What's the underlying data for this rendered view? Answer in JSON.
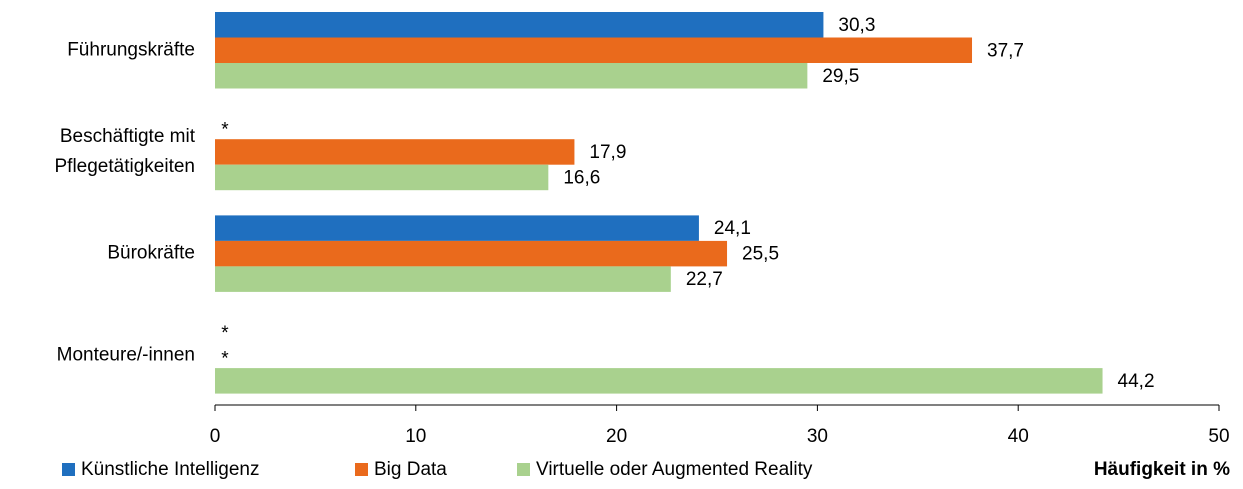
{
  "chart_data": {
    "type": "barh",
    "xlabel": "Häufigkeit in %",
    "categories": [
      "Führungskräfte",
      "Beschäftigte mit\nPflegetätigkeiten",
      "Bürokräfte",
      "Monteure/-innen"
    ],
    "series": [
      {
        "name": "Künstliche Intelligenz",
        "color": "#1f6fbf",
        "values": [
          30.3,
          null,
          24.1,
          null
        ],
        "value_labels": [
          "30,3",
          "*",
          "24,1",
          "*"
        ]
      },
      {
        "name": "Big Data",
        "color": "#ea6a1c",
        "values": [
          37.7,
          17.9,
          25.5,
          null
        ],
        "value_labels": [
          "37,7",
          "17,9",
          "25,5",
          "*"
        ]
      },
      {
        "name": "Virtuelle oder Augmented Reality",
        "color": "#a9d18e",
        "values": [
          29.5,
          16.6,
          22.7,
          44.2
        ],
        "value_labels": [
          "29,5",
          "16,6",
          "22,7",
          "44,2"
        ]
      }
    ],
    "xlim": [
      0,
      50
    ],
    "xticks": [
      0,
      10,
      20,
      30,
      40,
      50
    ],
    "grid": false,
    "legend": "bottom"
  }
}
